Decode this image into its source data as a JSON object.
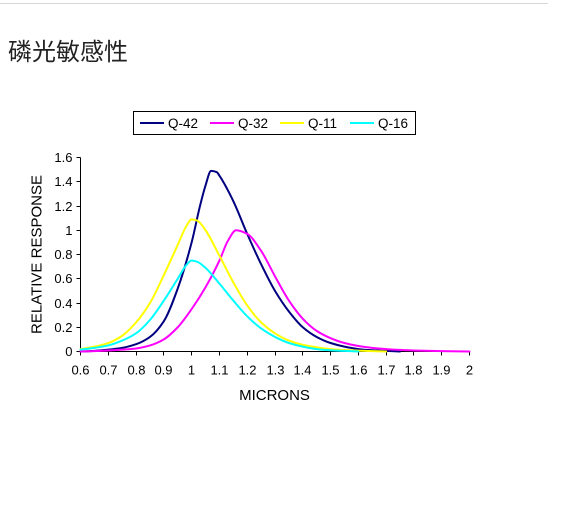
{
  "page": {
    "heading": "磷光敏感性"
  },
  "chart_data": {
    "type": "line",
    "xlabel": "MICRONS",
    "ylabel": "RELATIVE RESPONSE",
    "xlim": [
      0.6,
      2.0
    ],
    "ylim": [
      0,
      1.6
    ],
    "xticks": [
      "0.6",
      "0.7",
      "0.8",
      "0.9",
      "1",
      "1.1",
      "1.2",
      "1.3",
      "1.4",
      "1.5",
      "1.6",
      "1.7",
      "1.8",
      "1.9",
      "2"
    ],
    "yticks": [
      "0",
      "0.2",
      "0.4",
      "0.6",
      "0.8",
      "1",
      "1.2",
      "1.4",
      "1.6"
    ],
    "grid": false,
    "legend_position": "top",
    "series": [
      {
        "name": "Q-42",
        "color": "#000080",
        "points": [
          [
            0.6,
            0
          ],
          [
            0.65,
            0.005
          ],
          [
            0.7,
            0.015
          ],
          [
            0.75,
            0.03
          ],
          [
            0.8,
            0.06
          ],
          [
            0.85,
            0.12
          ],
          [
            0.9,
            0.25
          ],
          [
            0.95,
            0.52
          ],
          [
            1.0,
            0.9
          ],
          [
            1.03,
            1.2
          ],
          [
            1.05,
            1.37
          ],
          [
            1.07,
            1.49
          ],
          [
            1.09,
            1.48
          ],
          [
            1.1,
            1.45
          ],
          [
            1.15,
            1.24
          ],
          [
            1.2,
            0.97
          ],
          [
            1.25,
            0.72
          ],
          [
            1.3,
            0.5
          ],
          [
            1.35,
            0.33
          ],
          [
            1.4,
            0.2
          ],
          [
            1.45,
            0.12
          ],
          [
            1.5,
            0.07
          ],
          [
            1.55,
            0.04
          ],
          [
            1.6,
            0.02
          ],
          [
            1.65,
            0.01
          ],
          [
            1.7,
            0.005
          ],
          [
            1.75,
            0
          ]
        ]
      },
      {
        "name": "Q-32",
        "color": "#FF00FF",
        "points": [
          [
            0.6,
            0
          ],
          [
            0.65,
            0.003
          ],
          [
            0.7,
            0.008
          ],
          [
            0.75,
            0.015
          ],
          [
            0.8,
            0.025
          ],
          [
            0.85,
            0.05
          ],
          [
            0.9,
            0.1
          ],
          [
            0.95,
            0.2
          ],
          [
            1.0,
            0.35
          ],
          [
            1.05,
            0.53
          ],
          [
            1.1,
            0.75
          ],
          [
            1.13,
            0.91
          ],
          [
            1.16,
            1.0
          ],
          [
            1.2,
            0.97
          ],
          [
            1.25,
            0.83
          ],
          [
            1.3,
            0.62
          ],
          [
            1.35,
            0.42
          ],
          [
            1.4,
            0.27
          ],
          [
            1.45,
            0.17
          ],
          [
            1.5,
            0.11
          ],
          [
            1.55,
            0.07
          ],
          [
            1.6,
            0.045
          ],
          [
            1.65,
            0.03
          ],
          [
            1.7,
            0.02
          ],
          [
            1.75,
            0.013
          ],
          [
            1.8,
            0.008
          ],
          [
            1.9,
            0.003
          ],
          [
            2.0,
            0
          ]
        ]
      },
      {
        "name": "Q-11",
        "color": "#FFFF00",
        "points": [
          [
            0.6,
            0.02
          ],
          [
            0.65,
            0.04
          ],
          [
            0.7,
            0.07
          ],
          [
            0.75,
            0.13
          ],
          [
            0.8,
            0.24
          ],
          [
            0.85,
            0.4
          ],
          [
            0.9,
            0.63
          ],
          [
            0.95,
            0.88
          ],
          [
            0.98,
            1.03
          ],
          [
            1.0,
            1.09
          ],
          [
            1.02,
            1.08
          ],
          [
            1.05,
            1.0
          ],
          [
            1.1,
            0.79
          ],
          [
            1.15,
            0.57
          ],
          [
            1.2,
            0.38
          ],
          [
            1.25,
            0.24
          ],
          [
            1.3,
            0.15
          ],
          [
            1.35,
            0.09
          ],
          [
            1.4,
            0.055
          ],
          [
            1.45,
            0.035
          ],
          [
            1.5,
            0.02
          ],
          [
            1.55,
            0.012
          ],
          [
            1.6,
            0.007
          ],
          [
            1.65,
            0.003
          ],
          [
            1.7,
            0
          ]
        ]
      },
      {
        "name": "Q-16",
        "color": "#00FFFF",
        "points": [
          [
            0.6,
            0.015
          ],
          [
            0.65,
            0.03
          ],
          [
            0.7,
            0.05
          ],
          [
            0.75,
            0.09
          ],
          [
            0.8,
            0.15
          ],
          [
            0.85,
            0.26
          ],
          [
            0.9,
            0.42
          ],
          [
            0.95,
            0.6
          ],
          [
            0.98,
            0.71
          ],
          [
            1.0,
            0.75
          ],
          [
            1.02,
            0.74
          ],
          [
            1.05,
            0.69
          ],
          [
            1.1,
            0.56
          ],
          [
            1.15,
            0.42
          ],
          [
            1.2,
            0.29
          ],
          [
            1.25,
            0.19
          ],
          [
            1.3,
            0.12
          ],
          [
            1.35,
            0.07
          ],
          [
            1.4,
            0.04
          ],
          [
            1.45,
            0.02
          ],
          [
            1.5,
            0.01
          ],
          [
            1.55,
            0.005
          ],
          [
            1.6,
            0
          ]
        ]
      }
    ]
  }
}
